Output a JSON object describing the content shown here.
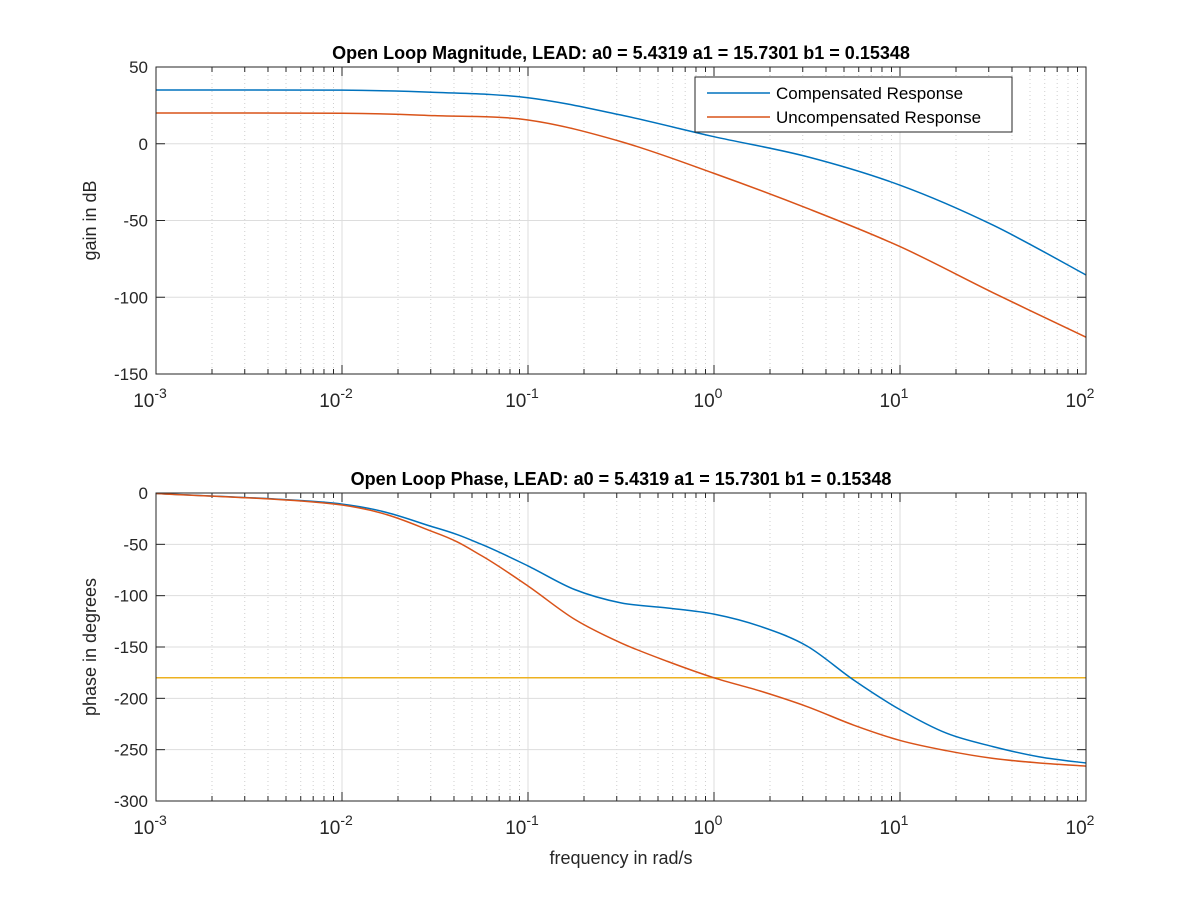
{
  "colors": {
    "compensated": "#0072BD",
    "uncompensated": "#D95319",
    "reference": "#EDB120",
    "grid": "#DDDDDD",
    "axis": "#262626"
  },
  "chart_data": [
    {
      "type": "line",
      "title": "Open Loop Magnitude, LEAD: a0 = 5.4319 a1 = 15.7301 b1 = 0.15348",
      "xlabel": "",
      "ylabel": "gain in dB",
      "xscale": "log",
      "xlim": [
        0.001,
        100
      ],
      "ylim": [
        -150,
        50
      ],
      "xticks": [
        {
          "base": "10",
          "exp": "-3"
        },
        {
          "base": "10",
          "exp": "-2"
        },
        {
          "base": "10",
          "exp": "-1"
        },
        {
          "base": "10",
          "exp": "0"
        },
        {
          "base": "10",
          "exp": "1"
        },
        {
          "base": "10",
          "exp": "2"
        }
      ],
      "yticks": [
        "-150",
        "-100",
        "-50",
        "0",
        "50"
      ],
      "grid": true,
      "minor_grid": true,
      "legend": "top-right",
      "x": [
        0.001,
        0.01,
        0.0316,
        0.1,
        0.316,
        1,
        3.16,
        10,
        31.6,
        100
      ],
      "series": [
        {
          "name": "Compensated Response",
          "y": [
            35,
            34.9,
            33.5,
            30,
            18.7,
            4.6,
            -8.4,
            -27,
            -53,
            -85.5
          ]
        },
        {
          "name": "Uncompensated Response",
          "y": [
            20,
            19.9,
            18.3,
            15.5,
            1.4,
            -19.3,
            -42,
            -67,
            -97,
            -126
          ]
        }
      ]
    },
    {
      "type": "line",
      "title": "Open Loop Phase, LEAD: a0 = 5.4319 a1 = 15.7301 b1 = 0.15348",
      "xlabel": "frequency in rad/s",
      "ylabel": "phase in degrees",
      "xscale": "log",
      "xlim": [
        0.001,
        100
      ],
      "ylim": [
        -300,
        0
      ],
      "xticks": [
        {
          "base": "10",
          "exp": "-3"
        },
        {
          "base": "10",
          "exp": "-2"
        },
        {
          "base": "10",
          "exp": "-1"
        },
        {
          "base": "10",
          "exp": "0"
        },
        {
          "base": "10",
          "exp": "1"
        },
        {
          "base": "10",
          "exp": "2"
        }
      ],
      "yticks": [
        "-300",
        "-250",
        "-200",
        "-150",
        "-100",
        "-50",
        "0"
      ],
      "grid": true,
      "minor_grid": true,
      "x": [
        0.001,
        0.01,
        0.0316,
        0.0562,
        0.1,
        0.178,
        0.316,
        0.562,
        1,
        1.78,
        3.16,
        5.62,
        10,
        17.8,
        31.6,
        56.2,
        100
      ],
      "series": [
        {
          "y": [
            -0.5,
            -10.8,
            -33.6,
            -50,
            -71,
            -94,
            -107,
            -112,
            -118,
            -130,
            -149,
            -182,
            -211,
            -234,
            -247,
            -257,
            -263
          ]
        },
        {
          "y": [
            -0.5,
            -11.7,
            -38.5,
            -61,
            -90.6,
            -123,
            -146,
            -164,
            -180,
            -193,
            -208,
            -226,
            -241,
            -251,
            -258.5,
            -263,
            -266
          ]
        }
      ],
      "reference_line": {
        "y": -180
      }
    }
  ]
}
